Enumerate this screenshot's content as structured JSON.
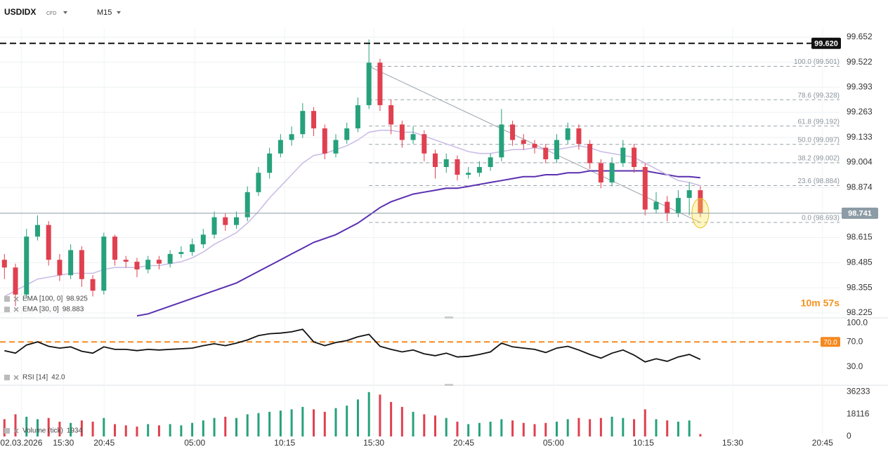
{
  "header": {
    "symbol": "USDIDX",
    "market": "CFD",
    "timeframe": "M15"
  },
  "countdown": "10m 57s",
  "chart_data": [
    {
      "type": "candlestick",
      "xlim": [
        -0.4,
        75.6
      ],
      "xticks": [
        {
          "value": 1.53,
          "label": "02.03.2026"
        },
        {
          "value": 5.34,
          "label": "15:30"
        },
        {
          "value": 9.03,
          "label": "20:45"
        },
        {
          "value": 17.23,
          "label": "05:00"
        },
        {
          "value": 25.37,
          "label": "10:15"
        },
        {
          "value": 33.44,
          "label": "15:30"
        },
        {
          "value": 41.58,
          "label": "20:45"
        },
        {
          "value": 49.71,
          "label": "05:00"
        },
        {
          "value": 57.85,
          "label": "10:15"
        },
        {
          "value": 65.93,
          "label": "15:30"
        },
        {
          "value": 74.06,
          "label": "20:45"
        }
      ],
      "ylim": [
        98.203,
        99.699
      ],
      "yticks": [
        99.652,
        99.522,
        99.393,
        99.263,
        99.133,
        99.004,
        98.874,
        98.615,
        98.485,
        98.355,
        98.225
      ],
      "grid": true,
      "up_color": "#26a17b",
      "down_color": "#e0404f",
      "open": [
        98.5,
        98.46,
        98.32,
        98.62,
        98.68,
        98.5,
        98.42,
        98.55,
        98.4,
        98.34,
        98.62,
        98.5,
        98.49,
        98.45,
        98.5,
        98.48,
        98.53,
        98.54,
        98.58,
        98.63,
        98.72,
        98.68,
        98.72,
        98.85,
        98.95,
        99.05,
        99.12,
        99.15,
        99.27,
        99.18,
        99.05,
        99.12,
        99.18,
        99.3,
        99.52,
        99.3,
        99.2,
        99.12,
        99.15,
        99.05,
        98.98,
        99.02,
        98.94,
        98.95,
        98.98,
        99.03,
        99.2,
        99.12,
        99.1,
        99.08,
        99.02,
        99.12,
        99.18,
        99.1,
        99.0,
        98.9,
        99.0,
        99.08,
        98.98,
        98.76,
        98.8,
        98.74,
        98.82,
        98.86
      ],
      "high": [
        98.53,
        98.48,
        98.66,
        98.73,
        98.7,
        98.53,
        98.58,
        98.57,
        98.42,
        98.64,
        98.63,
        98.52,
        98.51,
        98.52,
        98.52,
        98.55,
        98.57,
        98.61,
        98.66,
        98.75,
        98.74,
        98.75,
        98.88,
        98.98,
        99.08,
        99.15,
        99.19,
        99.31,
        99.29,
        99.2,
        99.15,
        99.21,
        99.34,
        99.64,
        99.54,
        99.33,
        99.22,
        99.19,
        99.17,
        99.07,
        99.05,
        99.04,
        98.98,
        99.01,
        99.05,
        99.28,
        99.22,
        99.15,
        99.12,
        99.1,
        99.15,
        99.21,
        99.2,
        99.12,
        99.02,
        99.03,
        99.12,
        99.1,
        99.0,
        98.85,
        98.83,
        98.86,
        98.9,
        98.88
      ],
      "low": [
        98.4,
        98.26,
        98.3,
        98.6,
        98.47,
        98.39,
        98.4,
        98.36,
        98.31,
        98.32,
        98.47,
        98.46,
        98.41,
        98.43,
        98.45,
        98.46,
        98.51,
        98.52,
        98.56,
        98.61,
        98.65,
        98.66,
        98.7,
        98.83,
        98.92,
        99.03,
        99.09,
        99.13,
        99.14,
        99.02,
        99.03,
        99.1,
        99.16,
        99.28,
        99.27,
        99.15,
        99.08,
        99.1,
        99.01,
        98.92,
        98.95,
        98.91,
        98.92,
        98.93,
        98.96,
        99.01,
        99.09,
        99.07,
        99.05,
        99.0,
        99.0,
        99.1,
        99.07,
        98.97,
        98.87,
        98.88,
        98.98,
        98.95,
        98.73,
        98.74,
        98.7,
        98.72,
        98.73,
        98.72
      ],
      "close": [
        98.46,
        98.32,
        98.62,
        98.68,
        98.5,
        98.42,
        98.55,
        98.4,
        98.34,
        98.62,
        98.5,
        98.49,
        98.45,
        98.5,
        98.48,
        98.53,
        98.54,
        98.58,
        98.63,
        98.72,
        98.68,
        98.72,
        98.85,
        98.95,
        99.05,
        99.12,
        99.15,
        99.27,
        99.18,
        99.05,
        99.12,
        99.18,
        99.3,
        99.52,
        99.3,
        99.2,
        99.12,
        99.15,
        99.05,
        98.98,
        99.02,
        98.94,
        98.95,
        98.98,
        99.03,
        99.2,
        99.12,
        99.1,
        99.08,
        99.02,
        99.12,
        99.18,
        99.1,
        99.0,
        98.9,
        99.0,
        99.08,
        98.98,
        98.76,
        98.8,
        98.74,
        98.82,
        98.86,
        98.741
      ],
      "series": [
        {
          "name": "EMA [100, 0]",
          "color": "#5a2fb0",
          "legend_value": 98.925,
          "values": [
            null,
            null,
            null,
            null,
            null,
            null,
            null,
            null,
            null,
            null,
            null,
            null,
            98.21,
            98.22,
            98.24,
            98.26,
            98.28,
            98.3,
            98.32,
            98.34,
            98.36,
            98.38,
            98.41,
            98.44,
            98.47,
            98.5,
            98.53,
            98.56,
            98.59,
            98.61,
            98.63,
            98.66,
            98.69,
            98.73,
            98.77,
            98.8,
            98.82,
            98.84,
            98.85,
            98.86,
            98.87,
            98.87,
            98.88,
            98.89,
            98.9,
            98.91,
            98.92,
            98.93,
            98.93,
            98.94,
            98.94,
            98.95,
            98.95,
            98.96,
            98.96,
            98.96,
            98.96,
            98.96,
            98.96,
            98.95,
            98.94,
            98.93,
            98.93,
            98.925
          ]
        },
        {
          "name": "EMA [30, 0]",
          "color": "#cbbde6",
          "legend_value": 98.883,
          "values": [
            98.31,
            98.34,
            98.37,
            98.4,
            98.41,
            98.42,
            98.43,
            98.43,
            98.43,
            98.45,
            98.46,
            98.46,
            98.46,
            98.47,
            98.47,
            98.48,
            98.49,
            98.51,
            98.54,
            98.58,
            98.61,
            98.64,
            98.69,
            98.75,
            98.82,
            98.88,
            98.94,
            99.0,
            99.04,
            99.05,
            99.07,
            99.09,
            99.12,
            99.16,
            99.17,
            99.17,
            99.16,
            99.16,
            99.14,
            99.12,
            99.1,
            99.08,
            99.06,
            99.05,
            99.05,
            99.06,
            99.07,
            99.07,
            99.08,
            99.07,
            99.07,
            99.08,
            99.09,
            99.08,
            99.06,
            99.05,
            99.04,
            99.03,
            99.0,
            98.97,
            98.94,
            98.91,
            98.9,
            98.883
          ]
        }
      ],
      "price_lines": [
        {
          "value": 99.62,
          "label": "99.620",
          "color": "#111111",
          "dashed": true
        },
        {
          "value": 98.741,
          "label": "98.741",
          "color": "#8c9ba5",
          "dashed": false
        }
      ],
      "fibonacci": {
        "color": "#9aa3ab",
        "levels": [
          {
            "value": 99.501,
            "label": "100.0 (99.501)"
          },
          {
            "value": 99.328,
            "label": "78.6 (99.328)"
          },
          {
            "value": 99.192,
            "label": "61.8 (99.192)"
          },
          {
            "value": 99.097,
            "label": "50.0 (99.097)"
          },
          {
            "value": 99.002,
            "label": "38.2 (99.002)"
          },
          {
            "value": 98.884,
            "label": "23.6 (98.884)"
          },
          {
            "value": 98.693,
            "label": "0.0 (98.693)"
          }
        ]
      }
    },
    {
      "type": "line",
      "ylim": [
        2,
        106
      ],
      "yticks": [
        {
          "value": 100,
          "label": "100.0"
        },
        {
          "value": 70,
          "label": "70.0"
        },
        {
          "value": 30,
          "label": "30.0"
        }
      ],
      "level": {
        "value": 70,
        "label": "70.0",
        "color": "#f5891f"
      },
      "series": [
        {
          "name": "RSI [14]",
          "color": "#111111",
          "legend_value": {
            "value": 42,
            "label": "42.0"
          },
          "values": [
            56,
            52,
            65,
            70,
            63,
            60,
            62,
            55,
            52,
            62,
            58,
            58,
            56,
            58,
            57,
            58,
            59,
            60,
            64,
            67,
            64,
            68,
            73,
            80,
            83,
            84,
            86,
            90,
            70,
            64,
            69,
            72,
            78,
            82,
            63,
            58,
            54,
            57,
            51,
            48,
            52,
            46,
            47,
            50,
            54,
            68,
            62,
            60,
            58,
            53,
            60,
            63,
            57,
            50,
            44,
            52,
            57,
            49,
            38,
            43,
            39,
            46,
            50,
            42
          ]
        }
      ]
    },
    {
      "type": "bar",
      "ylim": [
        0,
        39856
      ],
      "yticks": [
        0,
        18116,
        36233
      ],
      "series": [
        {
          "name": "Volume (tick)",
          "legend_value": 1934,
          "values": [
            14000,
            18000,
            16000,
            14000,
            15000,
            12000,
            11000,
            13000,
            12000,
            15000,
            10000,
            9000,
            8000,
            10000,
            9000,
            10000,
            9000,
            11000,
            13000,
            15000,
            16000,
            15000,
            18000,
            19000,
            20000,
            21000,
            22000,
            24000,
            22000,
            20000,
            23000,
            25000,
            30000,
            36000,
            34000,
            28000,
            24000,
            20000,
            18000,
            17000,
            15000,
            12000,
            10000,
            11000,
            12000,
            14000,
            13000,
            11000,
            10000,
            11000,
            12000,
            14000,
            15000,
            14000,
            15000,
            16000,
            15000,
            14000,
            22000,
            14000,
            13000,
            12000,
            13000,
            1934
          ]
        }
      ]
    }
  ]
}
